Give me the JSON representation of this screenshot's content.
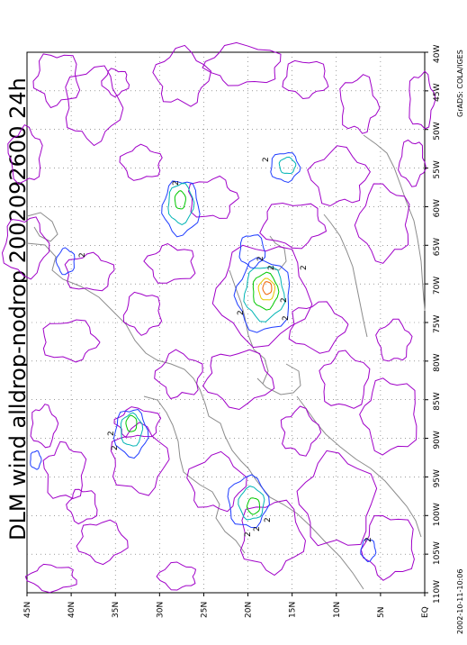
{
  "title": "DLM wind alldrop-nodrop 2002092600 24h",
  "timestamp": "2002-10-11-10:06",
  "credit": "GrADS: COLA/IGES",
  "map": {
    "lon_labels": [
      "40W",
      "45W",
      "50W",
      "55W",
      "60W",
      "65W",
      "70W",
      "75W",
      "80W",
      "85W",
      "90W",
      "95W",
      "100W",
      "105W",
      "110W"
    ],
    "lat_labels": [
      "EQ",
      "5N",
      "10N",
      "15N",
      "20N",
      "25N",
      "30N",
      "35N",
      "40N",
      "45N"
    ],
    "contour_labels": [
      "2",
      "2",
      "2",
      "2",
      "2",
      "2",
      "2",
      "2",
      "2",
      "2",
      "2",
      "2",
      "2",
      "2",
      "2"
    ],
    "colors": {
      "outer_contour": "#a000c8",
      "contour_2": "#1e3cff",
      "contour_3": "#00b4b4",
      "contour_4": "#00c800",
      "contour_5": "#e6c800",
      "contour_6": "#f06000",
      "coastline": "#8c8c8c",
      "grid": "#606060"
    }
  }
}
